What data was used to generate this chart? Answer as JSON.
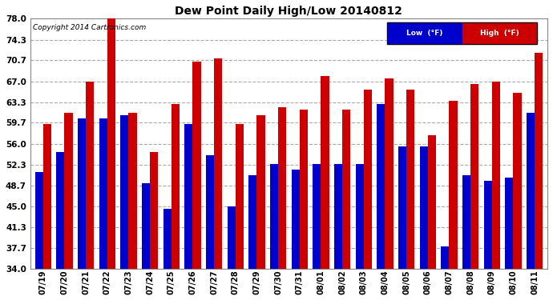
{
  "title": "Dew Point Daily High/Low 20140812",
  "copyright": "Copyright 2014 Cartronics.com",
  "dates": [
    "07/19",
    "07/20",
    "07/21",
    "07/22",
    "07/23",
    "07/24",
    "07/25",
    "07/26",
    "07/27",
    "07/28",
    "07/29",
    "07/30",
    "07/31",
    "08/01",
    "08/02",
    "08/03",
    "08/04",
    "08/05",
    "08/06",
    "08/07",
    "08/08",
    "08/09",
    "08/10",
    "08/11"
  ],
  "high": [
    59.5,
    61.5,
    67.0,
    78.0,
    61.5,
    54.5,
    63.0,
    70.5,
    71.0,
    59.5,
    61.0,
    62.5,
    62.0,
    68.0,
    62.0,
    65.5,
    67.5,
    65.5,
    57.5,
    63.5,
    66.5,
    67.0,
    65.0,
    72.0
  ],
  "low": [
    51.0,
    54.5,
    60.5,
    60.5,
    61.0,
    49.0,
    44.5,
    59.5,
    54.0,
    45.0,
    50.5,
    52.5,
    51.5,
    52.5,
    52.5,
    52.5,
    63.0,
    55.5,
    55.5,
    38.0,
    50.5,
    49.5,
    50.0,
    61.5
  ],
  "yticks": [
    34.0,
    37.7,
    41.3,
    45.0,
    48.7,
    52.3,
    56.0,
    59.7,
    63.3,
    67.0,
    70.7,
    74.3,
    78.0
  ],
  "ymin": 34.0,
  "ymax": 78.0,
  "bar_width": 0.38,
  "low_color": "#0000cc",
  "high_color": "#cc0000",
  "bg_color": "#ffffff",
  "grid_color": "#aaaaaa",
  "legend_low_label": "Low  (°F)",
  "legend_high_label": "High  (°F)"
}
